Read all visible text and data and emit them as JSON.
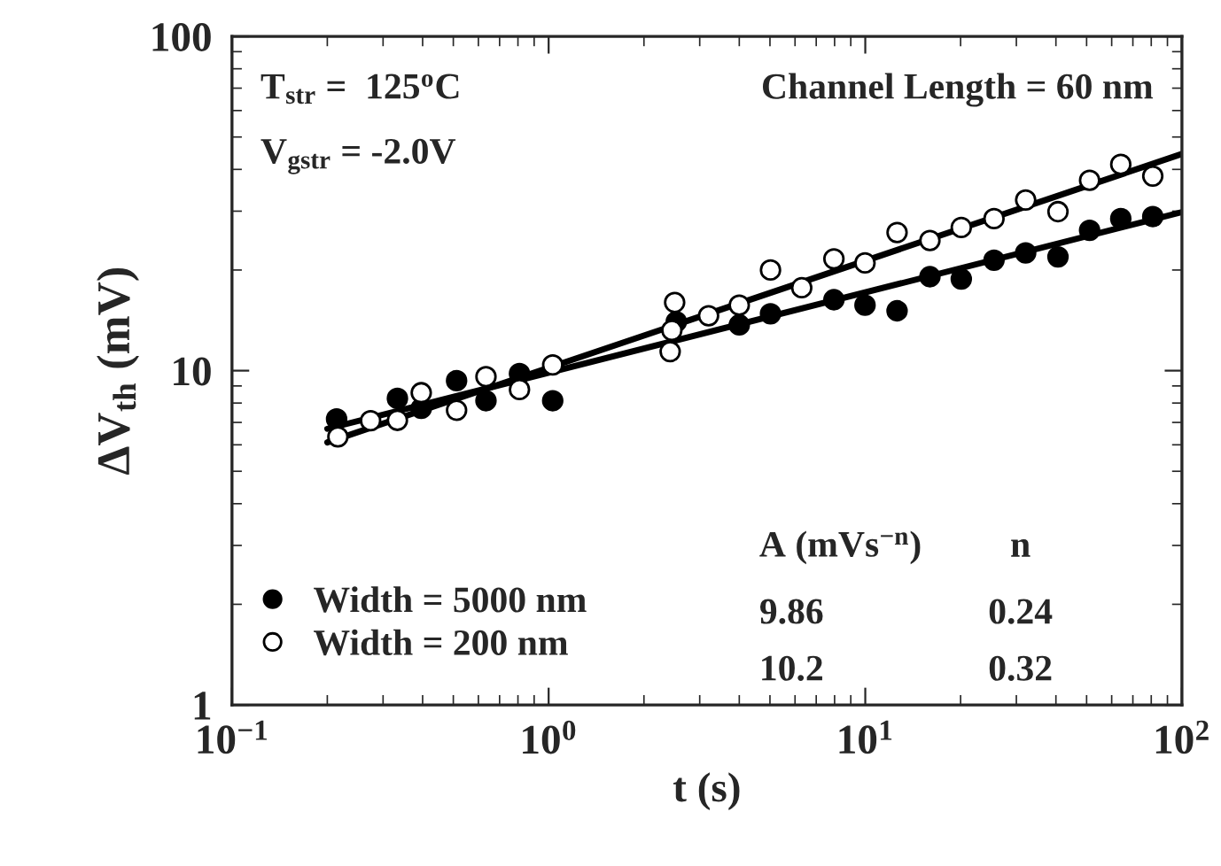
{
  "chart_data": {
    "type": "scatter",
    "xlabel": "t (s)",
    "ylabel": "ΔV$_{th}$ (mV)",
    "log": "xy",
    "xlim": [
      0.1,
      100
    ],
    "ylim": [
      1,
      100
    ],
    "xticks": [
      {
        "value": 0.1,
        "label": "10$^{−1}$"
      },
      {
        "value": 1,
        "label": "10$^{0}$"
      },
      {
        "value": 10,
        "label": "10$^{1}$"
      },
      {
        "value": 100,
        "label": "10$^{2}$"
      }
    ],
    "yticks": [
      1,
      10,
      100
    ],
    "grid": false,
    "legend": "bottom left",
    "marker": "circle",
    "annotations": [
      "T$_{str}$ =  125$^{o}$C",
      "V$_{gstr}$ = -2.0V",
      "Channel Length = 60 nm",
      "A (mVs$^{−n}$)",
      "n",
      "9.86",
      "0.24",
      "10.2",
      "0.32"
    ],
    "series": [
      {
        "name": "Width = 5000 nm",
        "color": "#000000",
        "x": [
          0.214,
          0.333,
          0.396,
          0.512,
          0.634,
          0.809,
          1.03,
          2.53,
          4.0,
          5.02,
          7.96,
          9.98,
          12.6,
          16.0,
          20.1,
          25.5,
          32.1,
          40.6,
          51.1,
          64.1,
          80.9
        ],
        "values": [
          7.17,
          8.26,
          7.71,
          9.33,
          8.13,
          9.8,
          8.13,
          14.0,
          13.7,
          14.8,
          16.3,
          15.7,
          15.1,
          19.1,
          18.8,
          21.4,
          22.5,
          21.9,
          26.3,
          28.5,
          28.9
        ]
      },
      {
        "name": "Width = 200 nm",
        "color": "#ffffff",
        "x": [
          0.216,
          0.274,
          0.333,
          0.396,
          0.512,
          0.634,
          0.809,
          1.03,
          2.5,
          2.45,
          2.42,
          3.2,
          4.0,
          5.02,
          6.3,
          7.96,
          9.98,
          12.6,
          16.0,
          20.1,
          25.5,
          32.1,
          40.6,
          51.1,
          64.1,
          80.9
        ],
        "values": [
          6.34,
          7.08,
          7.1,
          8.59,
          7.61,
          9.59,
          8.78,
          10.4,
          16.0,
          13.2,
          11.4,
          14.6,
          15.7,
          20.0,
          17.7,
          21.6,
          21.0,
          25.9,
          24.5,
          26.8,
          28.5,
          32.4,
          29.9,
          37.1,
          41.4,
          38.2
        ]
      },
      {
        "type": "line",
        "marker": "none",
        "color": "#000000",
        "x": [
          0.2,
          100
        ],
        "values": [
          6.7,
          29.8
        ]
      },
      {
        "type": "line",
        "marker": "none",
        "color": "#000000",
        "x": [
          0.2,
          100
        ],
        "values": [
          6.1,
          44.5
        ]
      }
    ]
  }
}
